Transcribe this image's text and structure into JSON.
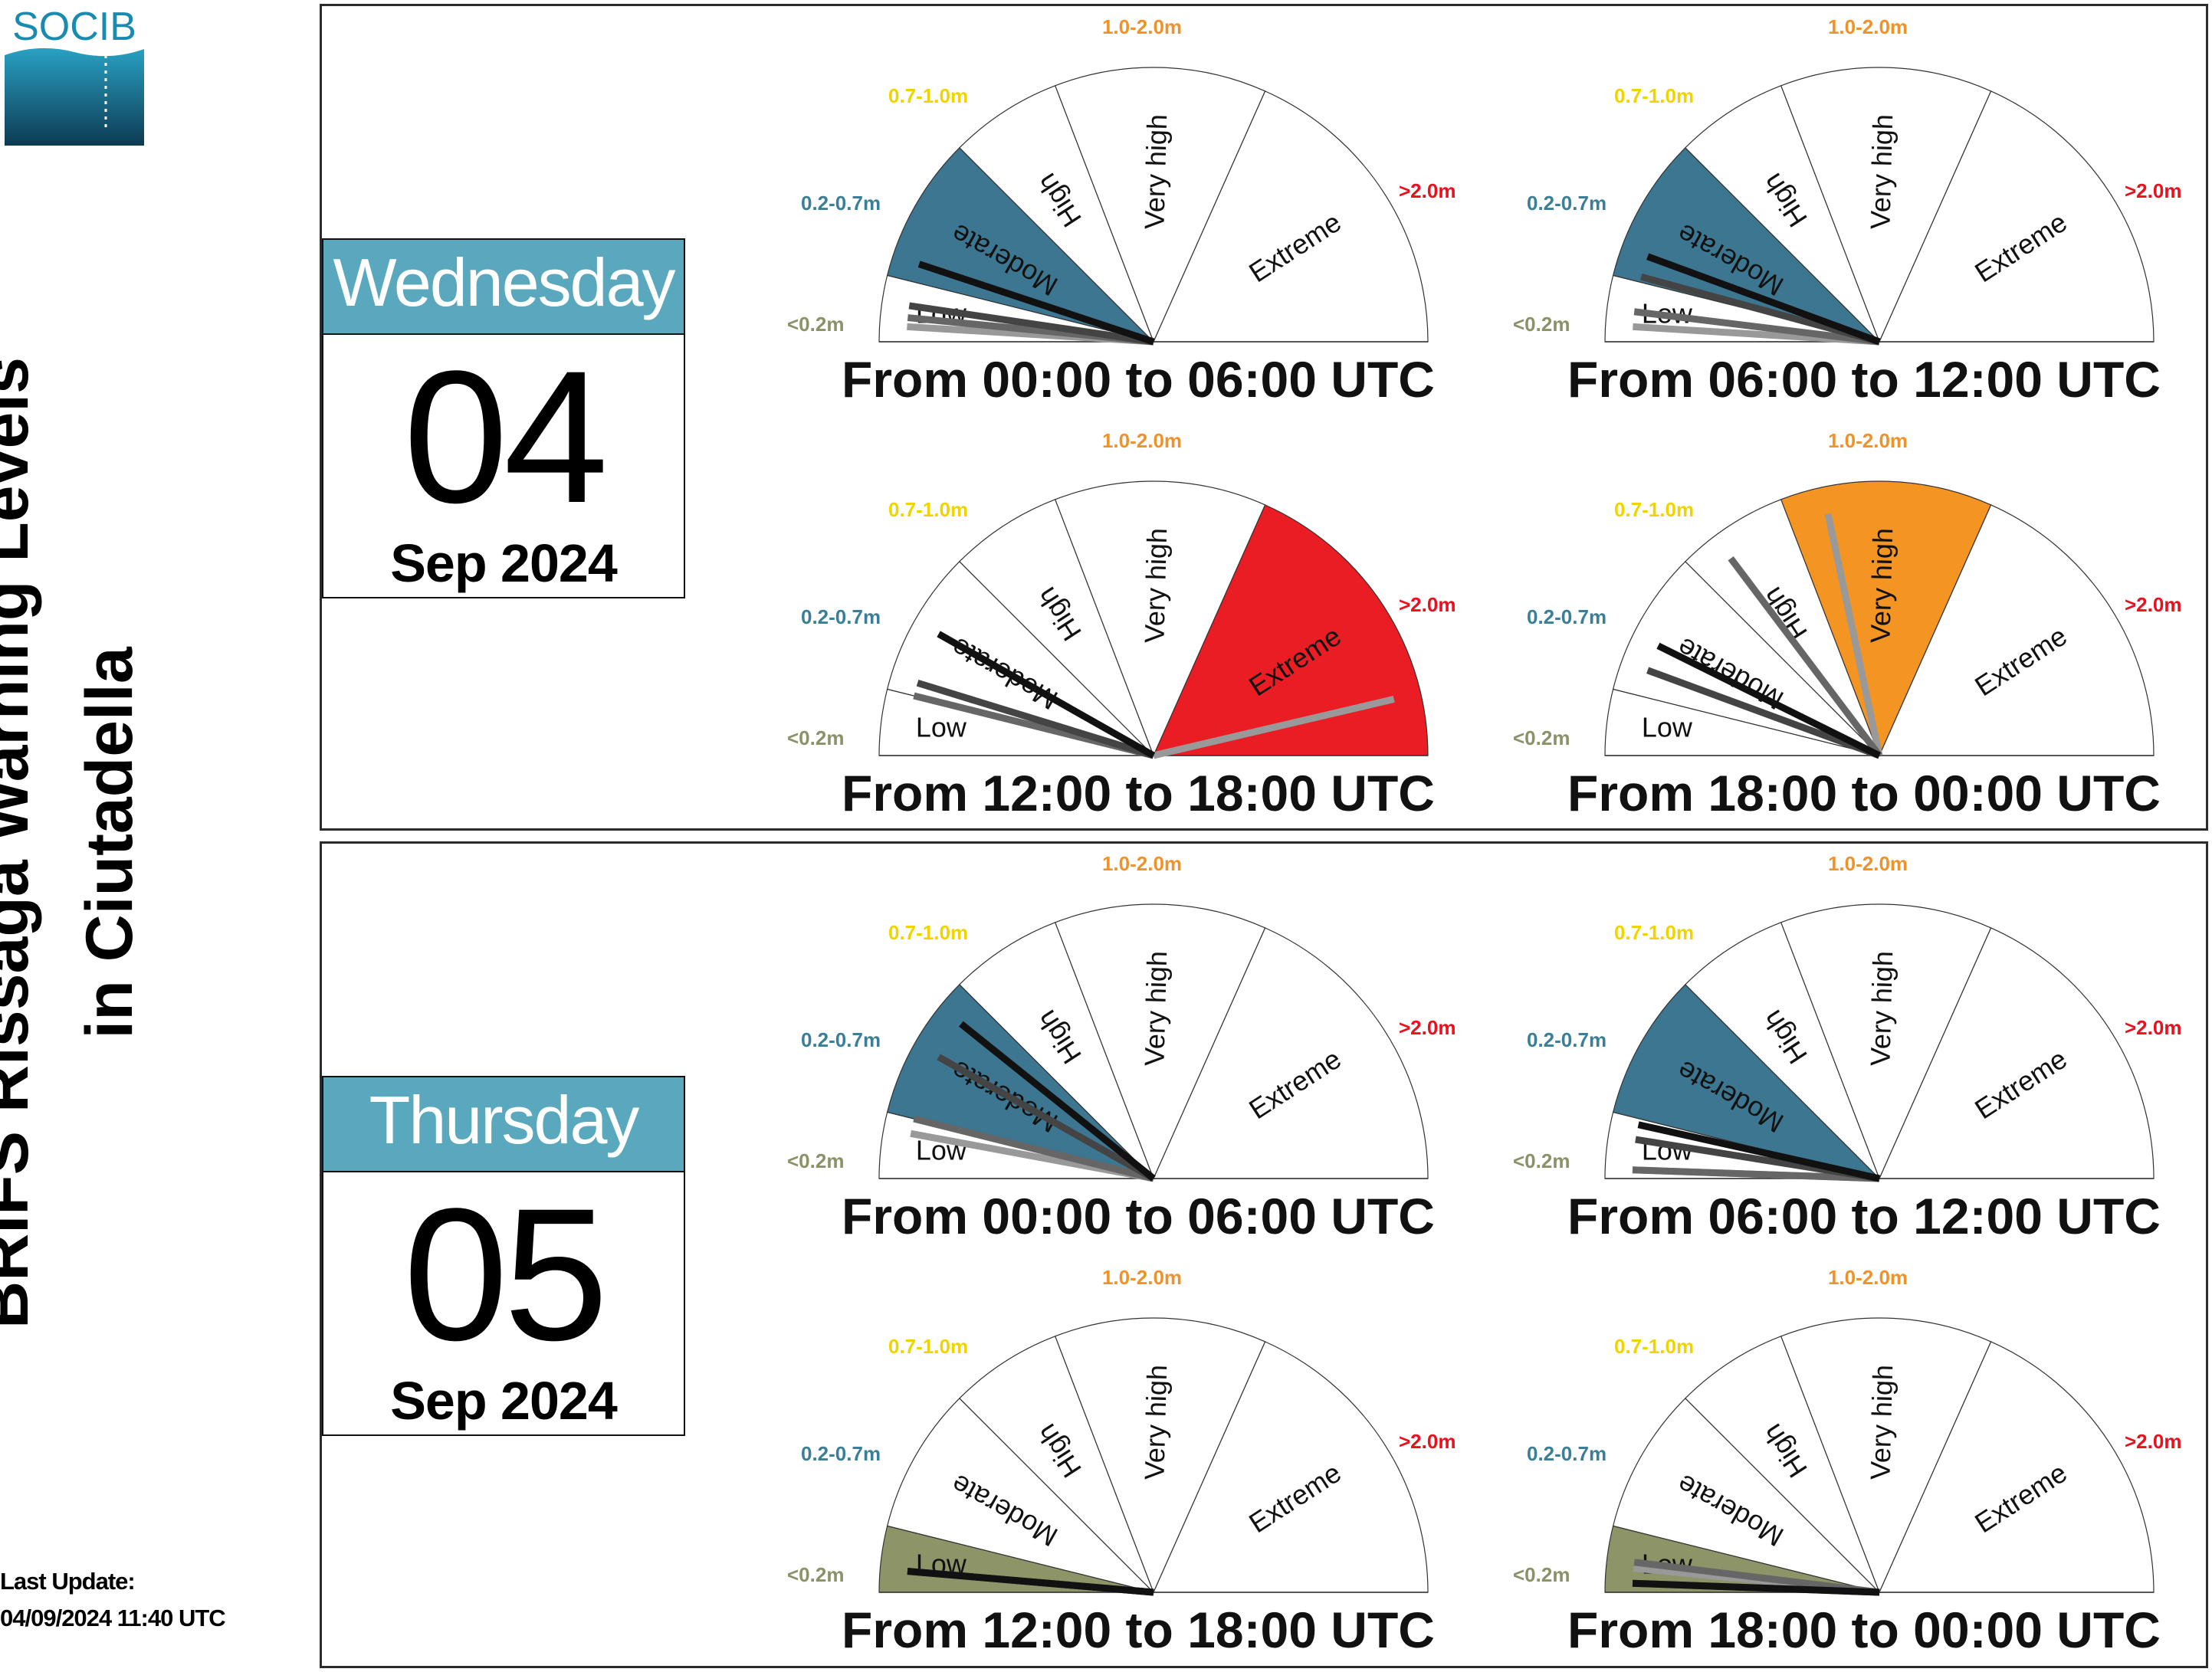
{
  "logo": {
    "text": "SOCIB",
    "colors": [
      "#1a90b0",
      "#0e3f58"
    ]
  },
  "title": {
    "line1": "BRIFS Rissaga Warning Levels",
    "line2": "in Ciutadella"
  },
  "last_update": {
    "label": "Last Update:",
    "value": "04/09/2024 11:40 UTC"
  },
  "days": [
    {
      "weekday": "Wednesday",
      "day": "04",
      "month_year": "Sep 2024"
    },
    {
      "weekday": "Thursday",
      "day": "05",
      "month_year": "Sep 2024"
    }
  ],
  "chart_data": {
    "type": "gauge",
    "description_levels": [
      {
        "name": "Low",
        "range": "<0.2m",
        "color": "#8c9468",
        "range_color": "#8a9268"
      },
      {
        "name": "Moderate",
        "range": "0.2-0.7m",
        "color": "#3c7690",
        "range_color": "#3a7f97"
      },
      {
        "name": "High",
        "range": "0.7-1.0m",
        "color": "#f8dc06",
        "range_color": "#f0d400"
      },
      {
        "name": "Very high",
        "range": "1.0-2.0m",
        "color": "#f39423",
        "range_color": "#f0922a"
      },
      {
        "name": "Extreme",
        "range": ">2.0m",
        "color": "#ea1c24",
        "range_color": "#e8111d"
      }
    ],
    "needle_colors": [
      "#111111",
      "#444444",
      "#666666",
      "#999999"
    ],
    "gauges": [
      {
        "day": 0,
        "period": "From 00:00 to 06:00 UTC",
        "highlight_level": 1,
        "needles_m": [
          0.27,
          0.12,
          0.08,
          0.05
        ]
      },
      {
        "day": 0,
        "period": "From 06:00 to 12:00 UTC",
        "highlight_level": 1,
        "needles_m": [
          0.3,
          0.22,
          0.1,
          0.05
        ]
      },
      {
        "day": 0,
        "period": "From 12:00 to 18:00 UTC",
        "highlight_level": 4,
        "needles_m": [
          0.45,
          0.25,
          0.2,
          2.8
        ]
      },
      {
        "day": 0,
        "period": "From 18:00 to 00:00 UTC",
        "highlight_level": 3,
        "needles_m": [
          0.4,
          0.3,
          0.8,
          1.2
        ]
      },
      {
        "day": 1,
        "period": "From 00:00 to 06:00 UTC",
        "highlight_level": 1,
        "needles_m": [
          0.6,
          0.45,
          0.2,
          0.15
        ]
      },
      {
        "day": 1,
        "period": "From 06:00 to 12:00 UTC",
        "highlight_level": 1,
        "needles_m": [
          0.18,
          0.13,
          0.0,
          0.0
        ]
      },
      {
        "day": 1,
        "period": "From 12:00 to 18:00 UTC",
        "highlight_level": 0,
        "needles_m": [
          0.07,
          0.07,
          0.07,
          0.07
        ]
      },
      {
        "day": 1,
        "period": "From 18:00 to 00:00 UTC",
        "highlight_level": 0,
        "needles_m": [
          0.03,
          0.03,
          0.1,
          0.08
        ]
      }
    ]
  }
}
